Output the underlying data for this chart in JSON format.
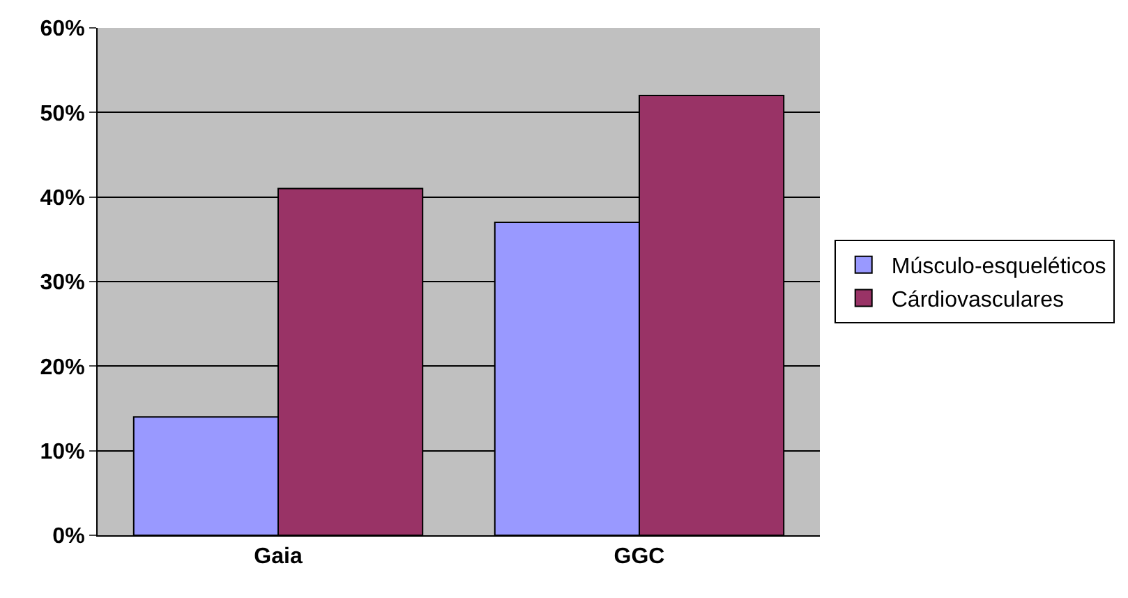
{
  "chart_data": {
    "type": "bar",
    "categories": [
      "Gaia",
      "GGC"
    ],
    "series": [
      {
        "name": "Músculo-esqueléticos",
        "color": "#9999ff",
        "values": [
          14,
          37
        ]
      },
      {
        "name": "Cárdiovasculares",
        "color": "#993366",
        "values": [
          41,
          52
        ]
      }
    ],
    "ylim": [
      0,
      60
    ],
    "yticks": [
      {
        "value": 0,
        "label": "0%"
      },
      {
        "value": 10,
        "label": "10%"
      },
      {
        "value": 20,
        "label": "20%"
      },
      {
        "value": 30,
        "label": "30%"
      },
      {
        "value": 40,
        "label": "40%"
      },
      {
        "value": 50,
        "label": "50%"
      },
      {
        "value": 60,
        "label": "60%"
      }
    ],
    "grid": "y",
    "legend": "right"
  }
}
